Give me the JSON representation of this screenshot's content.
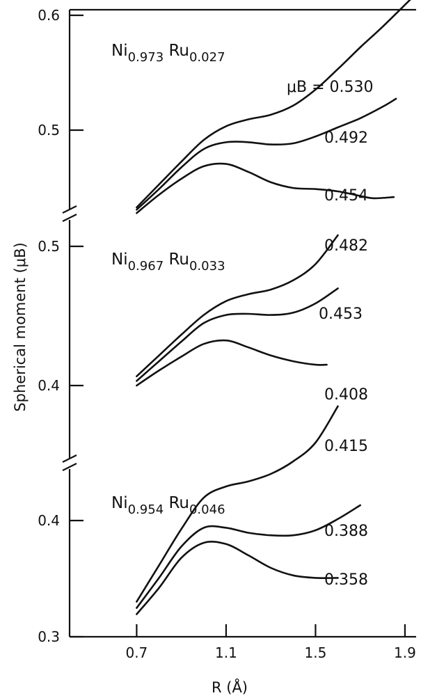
{
  "chart_data": {
    "type": "line",
    "xlabel": "R (Å)",
    "ylabel": "Spherical moment (μB)",
    "x_ticks": [
      "0.7",
      "1.1",
      "1.5",
      "1.9"
    ],
    "xlim": [
      0.4,
      1.95
    ],
    "panels": [
      {
        "composition": {
          "base": "Ni",
          "base_sub": "0.973",
          "dopant": "Ru",
          "dopant_sub": "0.027"
        },
        "y_ticks": [
          "0.6",
          "0.5"
        ],
        "ylim": [
          0.432,
          0.6
        ],
        "series": [
          {
            "label": "μB = 0.530",
            "x": [
              0.7,
              0.8,
              0.9,
              1.0,
              1.1,
              1.2,
              1.3,
              1.4,
              1.5,
              1.6,
              1.7,
              1.8,
              1.93
            ],
            "y": [
              0.432,
              0.452,
              0.472,
              0.491,
              0.503,
              0.509,
              0.513,
              0.521,
              0.535,
              0.553,
              0.572,
              0.59,
              0.615
            ]
          },
          {
            "label": "0.492",
            "x": [
              0.7,
              0.8,
              0.9,
              1.0,
              1.1,
              1.2,
              1.3,
              1.4,
              1.5,
              1.6,
              1.7,
              1.8,
              1.86
            ],
            "y": [
              0.43,
              0.448,
              0.467,
              0.483,
              0.489,
              0.489,
              0.487,
              0.488,
              0.494,
              0.502,
              0.51,
              0.52,
              0.527
            ]
          },
          {
            "label": "0.454",
            "x": [
              0.7,
              0.8,
              0.9,
              1.0,
              1.1,
              1.2,
              1.3,
              1.4,
              1.5,
              1.6,
              1.7,
              1.76,
              1.85
            ],
            "y": [
              0.427,
              0.443,
              0.457,
              0.468,
              0.47,
              0.463,
              0.454,
              0.449,
              0.448,
              0.446,
              0.442,
              0.44,
              0.441
            ]
          }
        ]
      },
      {
        "composition": {
          "base": "Ni",
          "base_sub": "0.967",
          "dopant": "Ru",
          "dopant_sub": "0.033"
        },
        "y_ticks": [
          "0.5",
          "0.4"
        ],
        "ylim": [
          0.39,
          0.52
        ],
        "series": [
          {
            "label": "0.482",
            "x": [
              0.7,
              0.8,
              0.9,
              1.0,
              1.1,
              1.2,
              1.3,
              1.4,
              1.5,
              1.6
            ],
            "y": [
              0.398,
              0.416,
              0.434,
              0.451,
              0.463,
              0.469,
              0.473,
              0.481,
              0.495,
              0.52
            ]
          },
          {
            "label": "0.453",
            "x": [
              0.7,
              0.8,
              0.9,
              1.0,
              1.1,
              1.2,
              1.3,
              1.4,
              1.5,
              1.6
            ],
            "y": [
              0.394,
              0.411,
              0.428,
              0.444,
              0.451,
              0.452,
              0.451,
              0.453,
              0.461,
              0.474
            ]
          },
          {
            "label": "0.408",
            "x": [
              0.7,
              0.8,
              0.9,
              1.0,
              1.1,
              1.2,
              1.3,
              1.4,
              1.5,
              1.55
            ],
            "y": [
              0.39,
              0.403,
              0.415,
              0.426,
              0.429,
              0.423,
              0.416,
              0.411,
              0.408,
              0.408
            ]
          }
        ]
      },
      {
        "composition": {
          "base": "Ni",
          "base_sub": "0.954",
          "dopant": "Ru",
          "dopant_sub": "0.046"
        },
        "y_ticks": [
          "0.4",
          "0.3"
        ],
        "ylim": [
          0.3,
          0.475
        ],
        "series": [
          {
            "label": "0.415",
            "x": [
              0.7,
              0.8,
              0.9,
              1.0,
              1.1,
              1.2,
              1.3,
              1.4,
              1.5,
              1.6
            ],
            "y": [
              0.328,
              0.357,
              0.386,
              0.411,
              0.42,
              0.424,
              0.43,
              0.44,
              0.455,
              0.484
            ]
          },
          {
            "label": "0.388",
            "x": [
              0.7,
              0.8,
              0.9,
              1.0,
              1.1,
              1.2,
              1.3,
              1.4,
              1.5,
              1.6,
              1.7
            ],
            "y": [
              0.323,
              0.347,
              0.372,
              0.387,
              0.387,
              0.383,
              0.381,
              0.381,
              0.385,
              0.394,
              0.405
            ]
          },
          {
            "label": "0.358",
            "x": [
              0.7,
              0.8,
              0.9,
              1.0,
              1.1,
              1.2,
              1.3,
              1.4,
              1.5,
              1.6
            ],
            "y": [
              0.318,
              0.339,
              0.363,
              0.375,
              0.374,
              0.365,
              0.355,
              0.349,
              0.347,
              0.347
            ]
          }
        ]
      }
    ]
  }
}
